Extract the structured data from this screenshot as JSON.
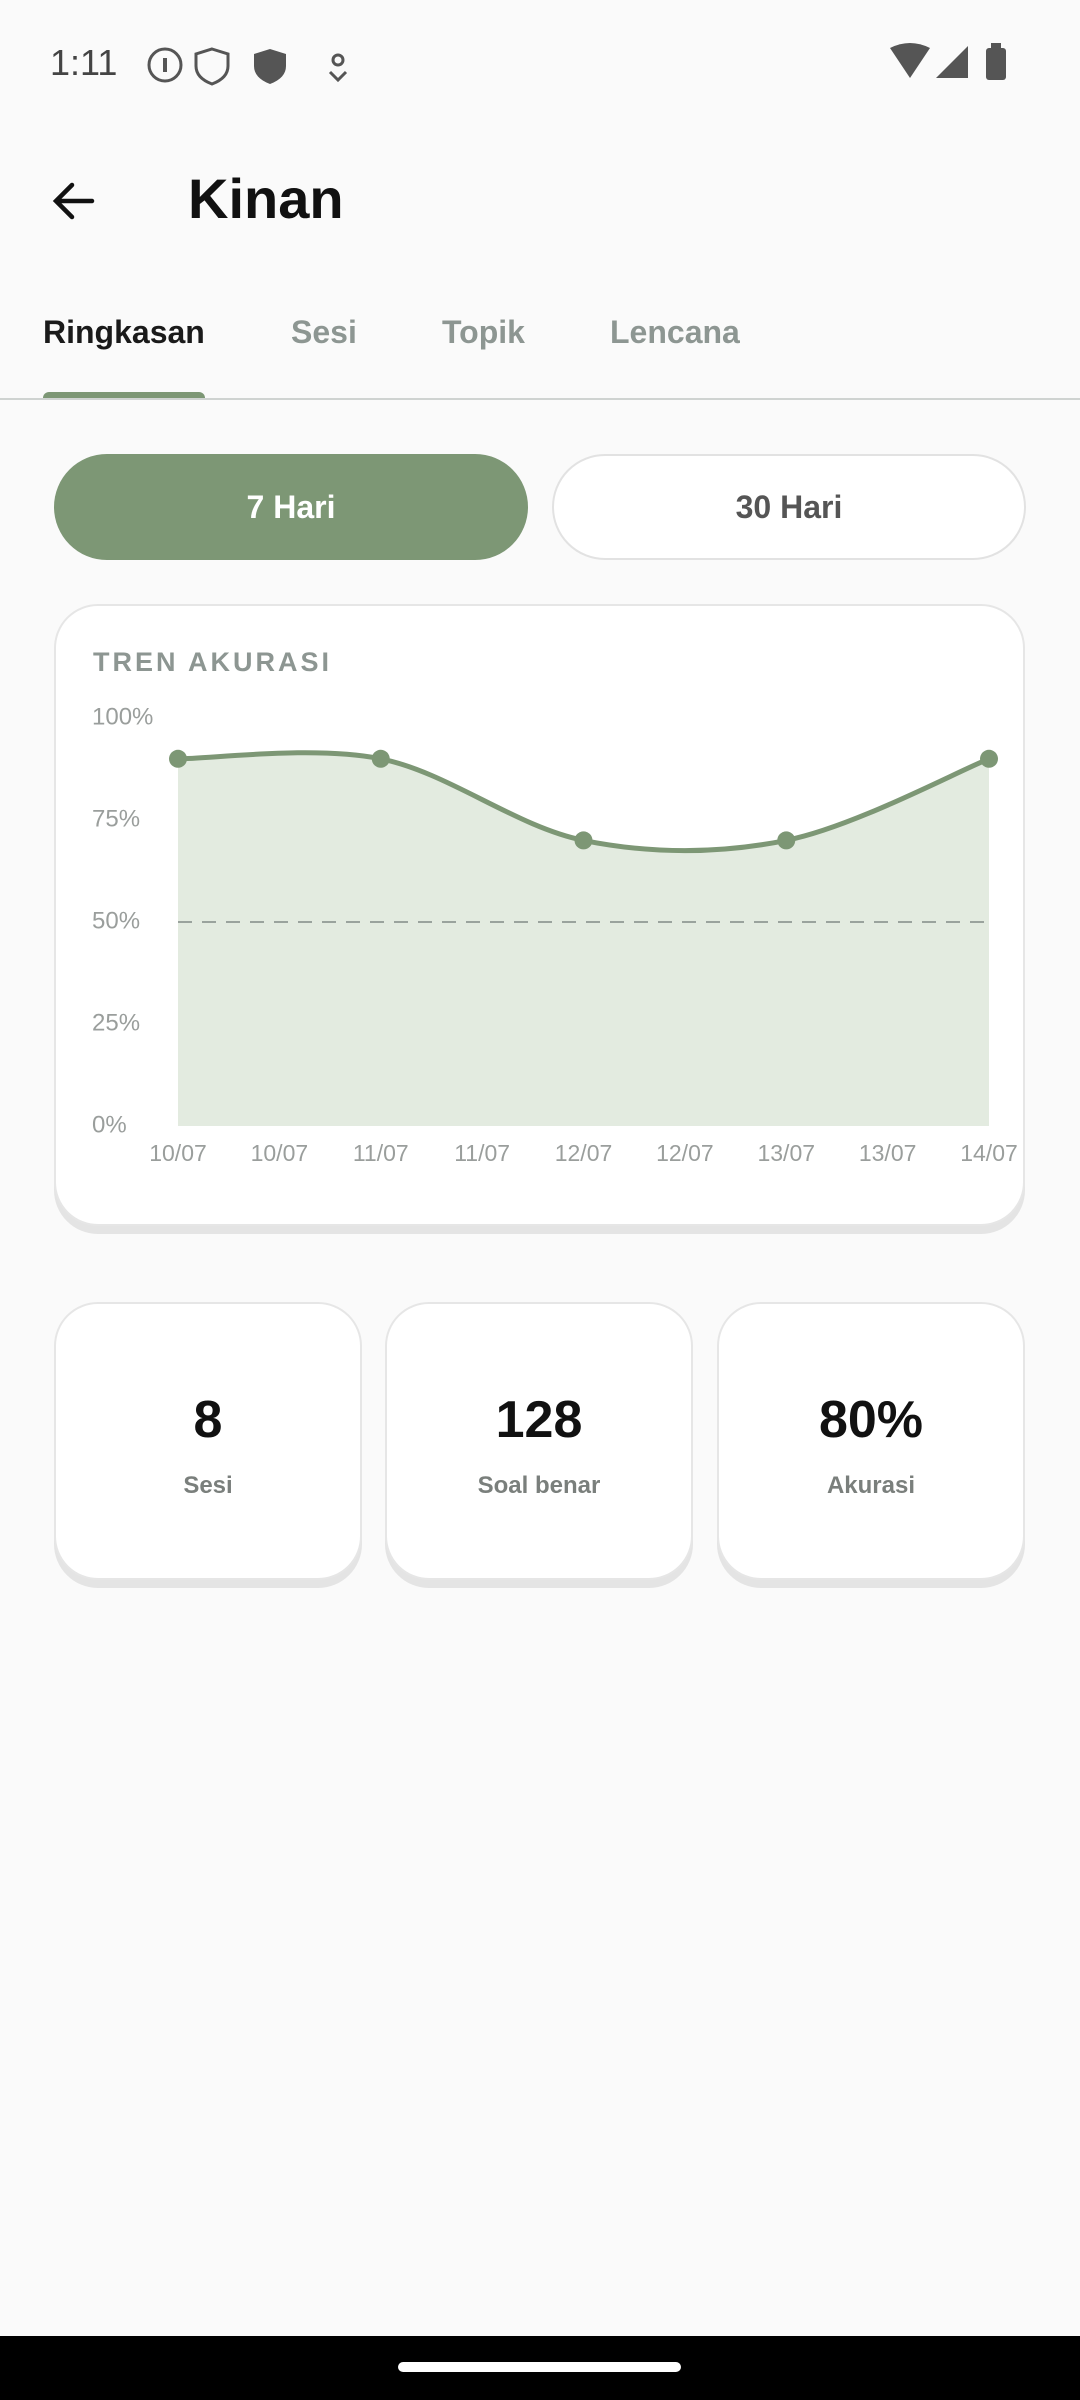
{
  "status": {
    "time": "1:11"
  },
  "header": {
    "title": "Kinan"
  },
  "tabs": [
    "Ringkasan",
    "Sesi",
    "Topik",
    "Lencana"
  ],
  "range_buttons": [
    "7 Hari",
    "30 Hari"
  ],
  "chart_data": {
    "type": "line",
    "title": "TREN AKURASI",
    "x": [
      0,
      2,
      4,
      6,
      8
    ],
    "values": [
      90,
      90,
      70,
      70,
      90
    ],
    "color": "#7d9775",
    "fill": "#e3ebe0",
    "xlim": [
      0,
      8
    ],
    "xticks": [
      {
        "value": 0,
        "label": "10/07"
      },
      {
        "value": 1,
        "label": "10/07"
      },
      {
        "value": 2,
        "label": "11/07"
      },
      {
        "value": 3,
        "label": "11/07"
      },
      {
        "value": 4,
        "label": "12/07"
      },
      {
        "value": 5,
        "label": "12/07"
      },
      {
        "value": 6,
        "label": "13/07"
      },
      {
        "value": 7,
        "label": "13/07"
      },
      {
        "value": 8,
        "label": "14/07"
      }
    ],
    "ylim": [
      0,
      100
    ],
    "yticks": [
      {
        "value": 0,
        "label": "0%"
      },
      {
        "value": 25,
        "label": "25%"
      },
      {
        "value": 50,
        "label": "50%"
      },
      {
        "value": 75,
        "label": "75%"
      },
      {
        "value": 100,
        "label": "100%"
      }
    ],
    "reference_line": 50
  },
  "stats": [
    {
      "value": "8",
      "label": "Sesi"
    },
    {
      "value": "128",
      "label": "Soal benar"
    },
    {
      "value": "80%",
      "label": "Akurasi"
    }
  ]
}
